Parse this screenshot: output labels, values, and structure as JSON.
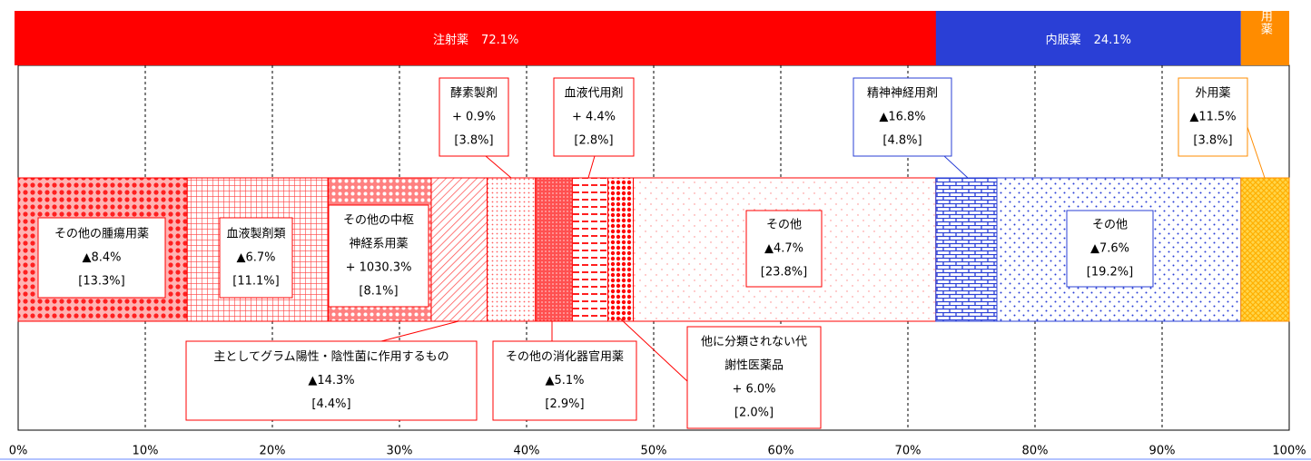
{
  "chart_data": {
    "type": "stacked-share-bar",
    "xlim": [
      0,
      100
    ],
    "xticks": [
      {
        "value": 0,
        "label": "0%"
      },
      {
        "value": 10,
        "label": "10%"
      },
      {
        "value": 20,
        "label": "20%"
      },
      {
        "value": 30,
        "label": "30%"
      },
      {
        "value": 40,
        "label": "40%"
      },
      {
        "value": 50,
        "label": "50%"
      },
      {
        "value": 60,
        "label": "60%"
      },
      {
        "value": 70,
        "label": "70%"
      },
      {
        "value": 80,
        "label": "80%"
      },
      {
        "value": 90,
        "label": "90%"
      },
      {
        "value": 100,
        "label": "100%"
      }
    ],
    "grid": true,
    "groups": [
      {
        "name": "注射薬",
        "value": 72.1,
        "value_label": "72.1%",
        "color": "#ff0000",
        "segments": [
          {
            "name": [
              "その他の腫瘍用薬"
            ],
            "change_label": "▲8.4%",
            "share": 13.3,
            "share_label": "[13.3%]"
          },
          {
            "name": [
              "血液製剤類"
            ],
            "change_label": "▲6.7%",
            "share": 11.1,
            "share_label": "[11.1%]"
          },
          {
            "name": [
              "その他の中枢",
              "神経系用薬"
            ],
            "change_label": "+ 1030.3%",
            "share": 8.1,
            "share_label": "[8.1%]"
          },
          {
            "name": [
              "主としてグラム陽性・陰性菌に作用するもの"
            ],
            "change_label": "▲14.3%",
            "share": 4.4,
            "share_label": "[4.4%]"
          },
          {
            "name": [
              "酵素製剤"
            ],
            "change_label": "+ 0.9%",
            "share": 3.8,
            "share_label": "[3.8%]"
          },
          {
            "name": [
              "その他の消化器官用薬"
            ],
            "change_label": "▲5.1%",
            "share": 2.9,
            "share_label": "[2.9%]"
          },
          {
            "name": [
              "血液代用剤"
            ],
            "change_label": "+ 4.4%",
            "share": 2.8,
            "share_label": "[2.8%]"
          },
          {
            "name": [
              "他に分類されない代",
              "謝性医薬品"
            ],
            "change_label": "+ 6.0%",
            "share": 2.0,
            "share_label": "[2.0%]"
          },
          {
            "name": [
              "その他"
            ],
            "change_label": "▲4.7%",
            "share": 23.8,
            "share_label": "[23.8%]"
          }
        ]
      },
      {
        "name": "内服薬",
        "value": 24.1,
        "value_label": "24.1%",
        "color": "#2a3fd6",
        "segments": [
          {
            "name": [
              "精神神経用剤"
            ],
            "change_label": "▲16.8%",
            "share": 4.8,
            "share_label": "[4.8%]"
          },
          {
            "name": [
              "その他"
            ],
            "change_label": "▲7.6%",
            "share": 19.2,
            "share_label": "[19.2%]"
          }
        ]
      },
      {
        "name": "外用薬",
        "color": "#ff8c00",
        "segments": [
          {
            "name": [
              "外用薬"
            ],
            "change_label": "▲11.5%",
            "share": 3.8,
            "share_label": "[3.8%]"
          }
        ]
      }
    ]
  }
}
